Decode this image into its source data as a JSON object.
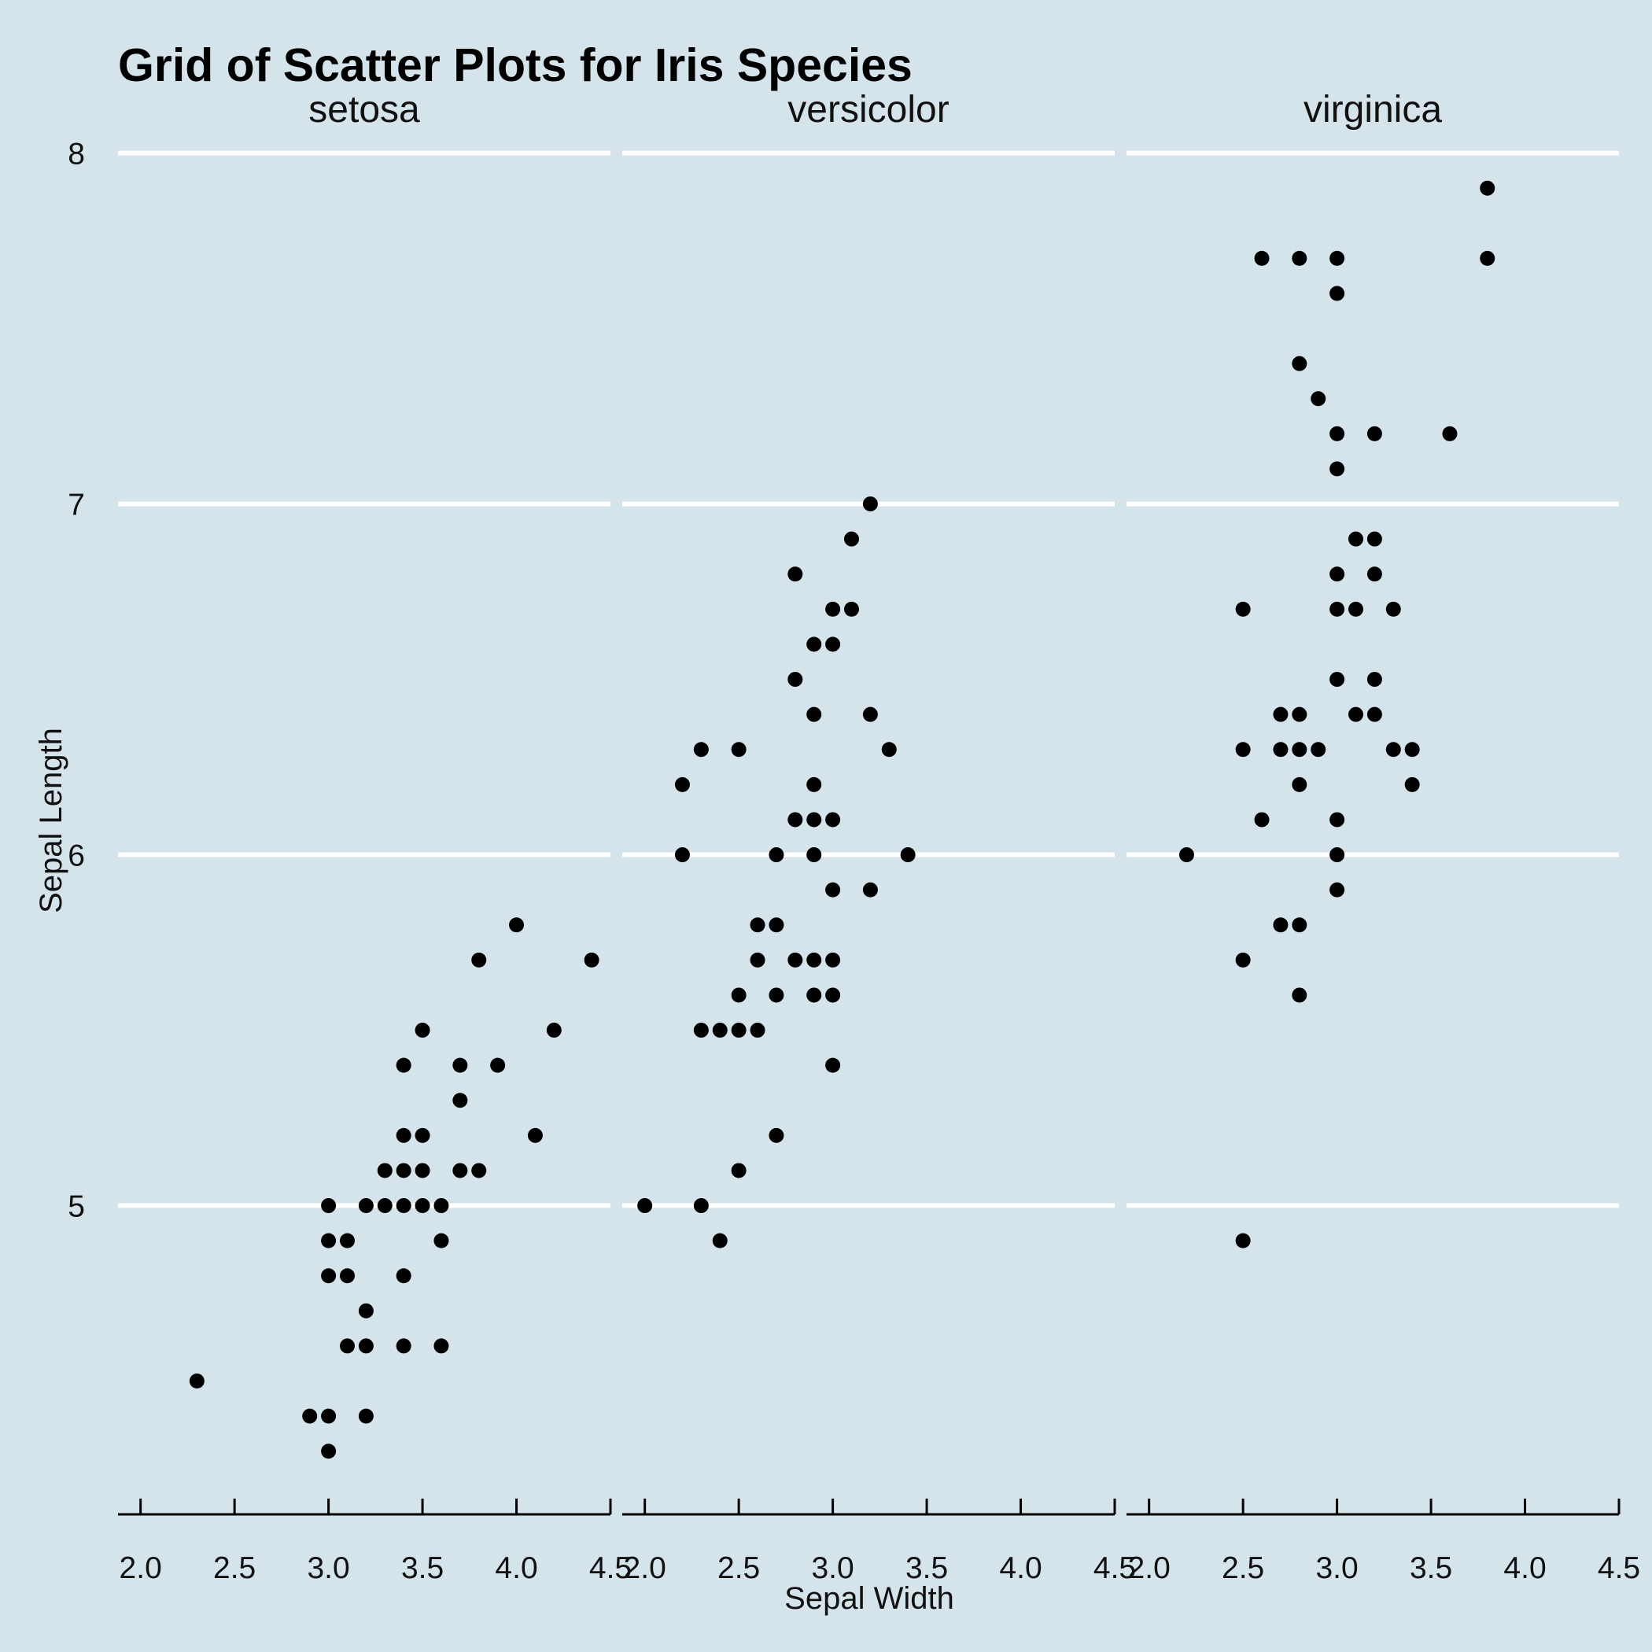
{
  "chart_data": {
    "type": "scatter",
    "title": "Grid of Scatter Plots for Iris Species",
    "xlabel": "Sepal Width",
    "ylabel": "Sepal Length",
    "xlim": [
      1.88,
      4.5
    ],
    "ylim": [
      4.12,
      8.1
    ],
    "x_ticks": [
      2.0,
      2.5,
      3.0,
      3.5,
      4.0,
      4.5
    ],
    "x_tick_labels": [
      "2.0",
      "2.5",
      "3.0",
      "3.5",
      "4.0",
      "4.5"
    ],
    "y_ticks": [
      5,
      6,
      7,
      8
    ],
    "y_tick_labels": [
      "5",
      "6",
      "7",
      "8"
    ],
    "grid": "horizontal major lines, white",
    "background": "#d5e4eb",
    "point_color": "#000000",
    "facets": [
      {
        "name": "setosa",
        "points": [
          [
            2.3,
            4.5
          ],
          [
            2.9,
            4.4
          ],
          [
            3.0,
            4.4
          ],
          [
            3.0,
            4.3
          ],
          [
            3.2,
            4.4
          ],
          [
            3.1,
            4.6
          ],
          [
            3.2,
            4.6
          ],
          [
            3.4,
            4.6
          ],
          [
            3.6,
            4.6
          ],
          [
            3.2,
            4.7
          ],
          [
            3.0,
            4.8
          ],
          [
            3.1,
            4.8
          ],
          [
            3.4,
            4.8
          ],
          [
            3.0,
            4.9
          ],
          [
            3.1,
            4.9
          ],
          [
            3.6,
            4.9
          ],
          [
            3.0,
            5.0
          ],
          [
            3.2,
            5.0
          ],
          [
            3.3,
            5.0
          ],
          [
            3.4,
            5.0
          ],
          [
            3.5,
            5.0
          ],
          [
            3.6,
            5.0
          ],
          [
            3.3,
            5.1
          ],
          [
            3.4,
            5.1
          ],
          [
            3.5,
            5.1
          ],
          [
            3.7,
            5.1
          ],
          [
            3.8,
            5.1
          ],
          [
            3.4,
            5.2
          ],
          [
            3.5,
            5.2
          ],
          [
            4.1,
            5.2
          ],
          [
            3.7,
            5.3
          ],
          [
            3.4,
            5.4
          ],
          [
            3.7,
            5.4
          ],
          [
            3.9,
            5.4
          ],
          [
            3.5,
            5.5
          ],
          [
            4.2,
            5.5
          ],
          [
            3.8,
            5.7
          ],
          [
            4.4,
            5.7
          ],
          [
            4.0,
            5.8
          ]
        ]
      },
      {
        "name": "versicolor",
        "points": [
          [
            2.0,
            5.0
          ],
          [
            2.3,
            5.0
          ],
          [
            2.4,
            4.9
          ],
          [
            2.5,
            5.1
          ],
          [
            2.7,
            5.2
          ],
          [
            3.0,
            5.4
          ],
          [
            2.3,
            5.5
          ],
          [
            2.4,
            5.5
          ],
          [
            2.5,
            5.5
          ],
          [
            2.6,
            5.5
          ],
          [
            2.5,
            5.6
          ],
          [
            2.7,
            5.6
          ],
          [
            2.9,
            5.6
          ],
          [
            3.0,
            5.6
          ],
          [
            2.6,
            5.7
          ],
          [
            2.8,
            5.7
          ],
          [
            2.9,
            5.7
          ],
          [
            3.0,
            5.7
          ],
          [
            2.6,
            5.8
          ],
          [
            2.7,
            5.8
          ],
          [
            3.0,
            5.9
          ],
          [
            3.2,
            5.9
          ],
          [
            2.2,
            6.0
          ],
          [
            2.7,
            6.0
          ],
          [
            2.9,
            6.0
          ],
          [
            3.4,
            6.0
          ],
          [
            2.8,
            6.1
          ],
          [
            2.9,
            6.1
          ],
          [
            3.0,
            6.1
          ],
          [
            2.2,
            6.2
          ],
          [
            2.9,
            6.2
          ],
          [
            2.3,
            6.3
          ],
          [
            2.5,
            6.3
          ],
          [
            3.3,
            6.3
          ],
          [
            2.9,
            6.4
          ],
          [
            3.2,
            6.4
          ],
          [
            2.8,
            6.5
          ],
          [
            2.9,
            6.6
          ],
          [
            3.0,
            6.6
          ],
          [
            3.0,
            6.7
          ],
          [
            3.1,
            6.7
          ],
          [
            2.8,
            6.8
          ],
          [
            3.1,
            6.9
          ],
          [
            3.2,
            7.0
          ]
        ]
      },
      {
        "name": "virginica",
        "points": [
          [
            2.5,
            4.9
          ],
          [
            2.8,
            5.6
          ],
          [
            2.5,
            5.7
          ],
          [
            2.7,
            5.8
          ],
          [
            2.8,
            5.8
          ],
          [
            3.0,
            5.9
          ],
          [
            2.2,
            6.0
          ],
          [
            3.0,
            6.0
          ],
          [
            2.6,
            6.1
          ],
          [
            3.0,
            6.1
          ],
          [
            2.8,
            6.2
          ],
          [
            3.4,
            6.2
          ],
          [
            2.5,
            6.3
          ],
          [
            2.7,
            6.3
          ],
          [
            2.8,
            6.3
          ],
          [
            2.9,
            6.3
          ],
          [
            3.3,
            6.3
          ],
          [
            3.4,
            6.3
          ],
          [
            2.7,
            6.4
          ],
          [
            2.8,
            6.4
          ],
          [
            3.1,
            6.4
          ],
          [
            3.2,
            6.4
          ],
          [
            3.0,
            6.5
          ],
          [
            3.2,
            6.5
          ],
          [
            2.5,
            6.7
          ],
          [
            3.0,
            6.7
          ],
          [
            3.1,
            6.7
          ],
          [
            3.3,
            6.7
          ],
          [
            3.0,
            6.8
          ],
          [
            3.2,
            6.8
          ],
          [
            3.1,
            6.9
          ],
          [
            3.2,
            6.9
          ],
          [
            3.0,
            7.1
          ],
          [
            3.0,
            7.2
          ],
          [
            3.2,
            7.2
          ],
          [
            3.6,
            7.2
          ],
          [
            2.9,
            7.3
          ],
          [
            2.8,
            7.4
          ],
          [
            3.0,
            7.6
          ],
          [
            2.6,
            7.7
          ],
          [
            2.8,
            7.7
          ],
          [
            3.0,
            7.7
          ],
          [
            3.8,
            7.7
          ],
          [
            3.8,
            7.9
          ]
        ]
      }
    ]
  }
}
